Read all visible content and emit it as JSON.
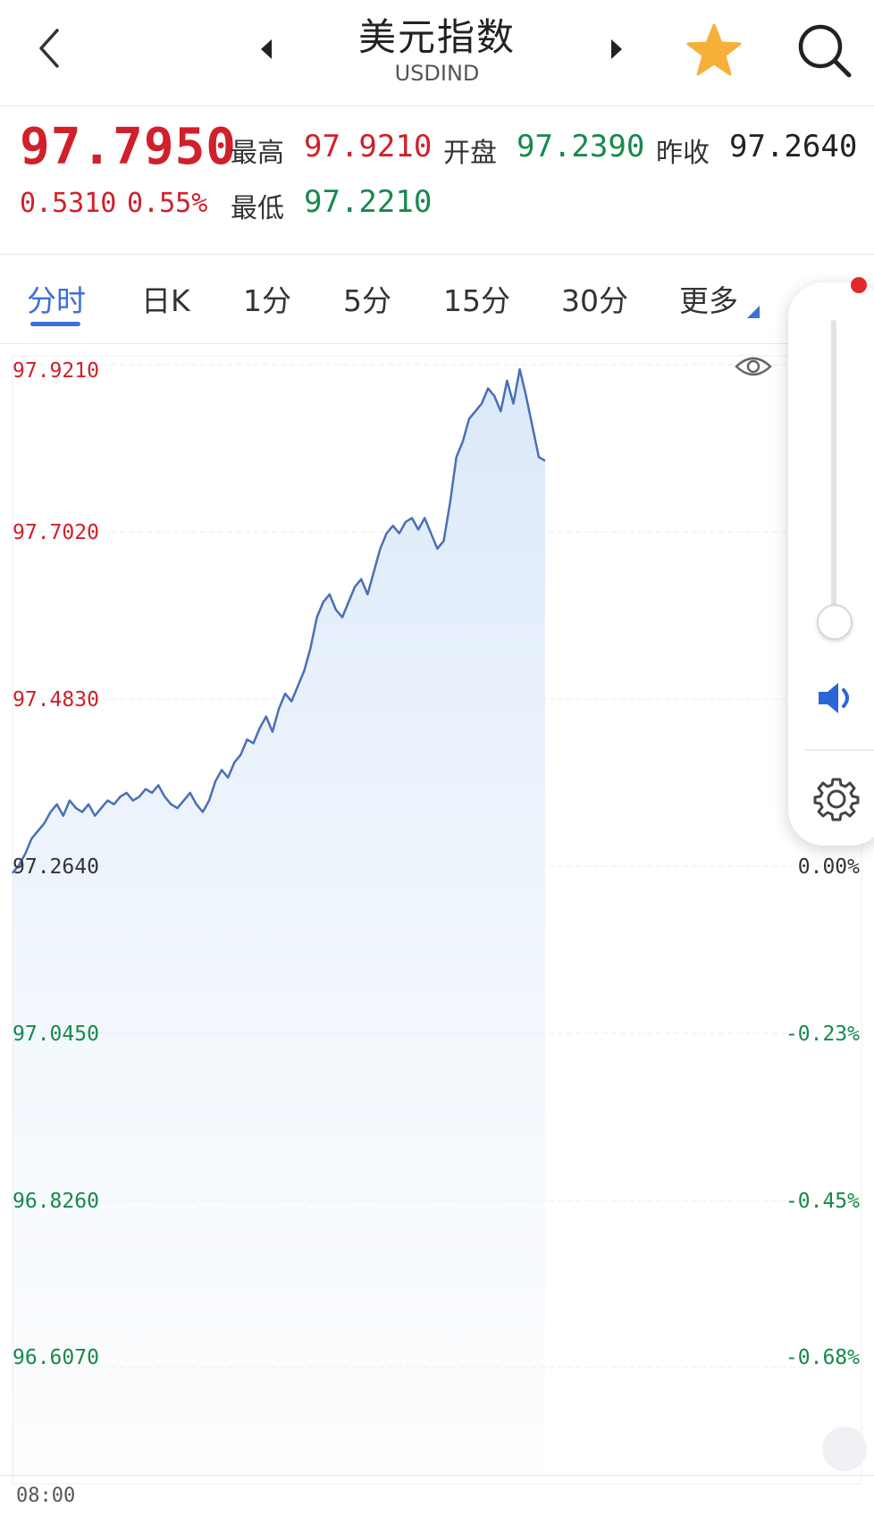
{
  "header": {
    "title": "美元指数",
    "subtitle": "USDIND"
  },
  "quote": {
    "price": "97.7950",
    "change": "0.5310",
    "change_pct": "0.55%",
    "high_label": "最高",
    "high": "97.9210",
    "low_label": "最低",
    "low": "97.2210",
    "open_label": "开盘",
    "open": "97.2390",
    "prev_close_label": "昨收",
    "prev_close": "97.2640"
  },
  "tabs": [
    {
      "label": "分时",
      "active": true
    },
    {
      "label": "日K"
    },
    {
      "label": "1分"
    },
    {
      "label": "5分"
    },
    {
      "label": "15分"
    },
    {
      "label": "30分"
    },
    {
      "label": "更多"
    }
  ],
  "colors": {
    "up": "#d0202a",
    "down": "#17894a",
    "accent": "#3b6fd8",
    "line": "#4a6fb5"
  },
  "chart_data": {
    "type": "line",
    "y_ticks": [
      "97.9210",
      "97.7020",
      "97.4830",
      "97.2640",
      "97.0450",
      "96.8260",
      "96.6070"
    ],
    "pct_ticks": [
      "0.00%",
      "-0.23%",
      "-0.45%",
      "-0.68%"
    ],
    "x_start_label": "08:00",
    "ylim": [
      96.607,
      97.921
    ],
    "baseline": 97.264,
    "series": [
      {
        "values": [
          97.255,
          97.265,
          97.28,
          97.3,
          97.31,
          97.32,
          97.335,
          97.345,
          97.33,
          97.35,
          97.34,
          97.335,
          97.345,
          97.33,
          97.34,
          97.35,
          97.345,
          97.355,
          97.36,
          97.35,
          97.355,
          97.365,
          97.36,
          97.37,
          97.355,
          97.345,
          97.34,
          97.35,
          97.36,
          97.345,
          97.335,
          97.35,
          97.375,
          97.39,
          97.38,
          97.4,
          97.41,
          97.43,
          97.425,
          97.445,
          97.46,
          97.44,
          97.47,
          97.49,
          97.48,
          97.5,
          97.52,
          97.55,
          97.59,
          97.61,
          97.62,
          97.6,
          97.59,
          97.61,
          97.63,
          97.64,
          97.62,
          97.65,
          97.68,
          97.7,
          97.71,
          97.7,
          97.715,
          97.72,
          97.705,
          97.72,
          97.7,
          97.68,
          97.69,
          97.74,
          97.8,
          97.82,
          97.85,
          97.86,
          97.87,
          97.89,
          97.88,
          97.86,
          97.9,
          97.87,
          97.915,
          97.88,
          97.84,
          97.8,
          97.795
        ]
      }
    ]
  },
  "side_panel": {
    "icons": [
      "volume-slider",
      "speaker-icon",
      "gear-icon"
    ]
  }
}
